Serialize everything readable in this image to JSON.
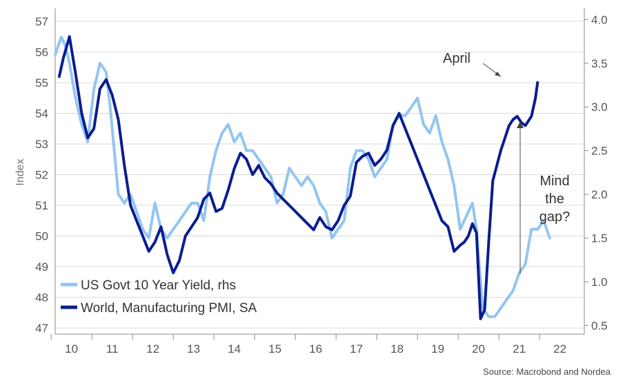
{
  "chart_data": {
    "type": "line",
    "title": "",
    "ylabel_left": "Index",
    "ylabel_right": "",
    "x_ticks": [
      "10",
      "11",
      "12",
      "13",
      "14",
      "15",
      "16",
      "17",
      "18",
      "19",
      "20",
      "21",
      "22"
    ],
    "xlim": [
      2009.6,
      2022.6
    ],
    "ylim_left": [
      46.8,
      57.2
    ],
    "y_ticks_left": [
      47,
      48,
      49,
      50,
      51,
      52,
      53,
      54,
      55,
      56,
      57
    ],
    "ylim_right": [
      0.4,
      4.05
    ],
    "y_ticks_right": [
      "0.5",
      "1.0",
      "1.5",
      "2.0",
      "2.5",
      "3.0",
      "3.5",
      "4.0"
    ],
    "grid": "horizontal",
    "legend_position": "bottom-left",
    "series": [
      {
        "name": "US Govt 10 Year Yield, rhs",
        "axis": "right",
        "color": "#93c5f0",
        "x": [
          2009.6,
          2009.75,
          2009.85,
          2009.95,
          2010.1,
          2010.25,
          2010.4,
          2010.55,
          2010.7,
          2010.85,
          2010.95,
          2011.05,
          2011.15,
          2011.3,
          2011.45,
          2011.6,
          2011.75,
          2011.9,
          2012.05,
          2012.2,
          2012.35,
          2012.5,
          2012.65,
          2012.8,
          2012.95,
          2013.1,
          2013.25,
          2013.4,
          2013.55,
          2013.7,
          2013.85,
          2014.0,
          2014.15,
          2014.3,
          2014.45,
          2014.6,
          2014.75,
          2014.9,
          2015.05,
          2015.2,
          2015.35,
          2015.5,
          2015.65,
          2015.8,
          2015.95,
          2016.1,
          2016.25,
          2016.4,
          2016.55,
          2016.7,
          2016.85,
          2017.0,
          2017.15,
          2017.3,
          2017.45,
          2017.6,
          2017.75,
          2017.9,
          2018.05,
          2018.2,
          2018.35,
          2018.5,
          2018.65,
          2018.8,
          2018.95,
          2019.1,
          2019.25,
          2019.4,
          2019.55,
          2019.65,
          2019.75,
          2019.85,
          2019.95,
          2020.1,
          2020.25,
          2020.4,
          2020.55,
          2020.7,
          2020.85,
          2021.0,
          2021.15,
          2021.3,
          2021.45,
          2021.6,
          2021.75
        ],
        "values": [
          3.6,
          3.8,
          3.7,
          3.5,
          3.1,
          2.8,
          2.6,
          3.2,
          3.5,
          3.4,
          3.0,
          2.5,
          2.0,
          1.9,
          2.0,
          1.8,
          1.6,
          1.5,
          1.9,
          1.6,
          1.5,
          1.6,
          1.7,
          1.8,
          1.9,
          1.9,
          1.7,
          2.2,
          2.5,
          2.7,
          2.8,
          2.6,
          2.7,
          2.5,
          2.5,
          2.4,
          2.3,
          2.2,
          1.9,
          2.0,
          2.3,
          2.2,
          2.1,
          2.2,
          2.1,
          1.9,
          1.8,
          1.5,
          1.6,
          1.7,
          2.3,
          2.5,
          2.5,
          2.4,
          2.2,
          2.3,
          2.4,
          2.8,
          2.9,
          2.9,
          3.0,
          3.1,
          2.8,
          2.7,
          2.9,
          2.6,
          2.4,
          2.1,
          1.6,
          1.7,
          1.8,
          1.9,
          1.6,
          0.7,
          0.6,
          0.6,
          0.7,
          0.8,
          0.9,
          1.1,
          1.2,
          1.6,
          1.6,
          1.7,
          1.5
        ]
      },
      {
        "name": "World, Manufacturing PMI, SA",
        "axis": "left",
        "color": "#0a1d8f",
        "x": [
          2009.7,
          2009.8,
          2009.95,
          2010.1,
          2010.25,
          2010.4,
          2010.55,
          2010.7,
          2010.85,
          2011.0,
          2011.15,
          2011.3,
          2011.45,
          2011.6,
          2011.75,
          2011.9,
          2012.05,
          2012.2,
          2012.35,
          2012.5,
          2012.65,
          2012.8,
          2012.95,
          2013.1,
          2013.25,
          2013.4,
          2013.55,
          2013.7,
          2013.85,
          2014.0,
          2014.15,
          2014.3,
          2014.45,
          2014.6,
          2014.75,
          2014.9,
          2015.05,
          2015.2,
          2015.35,
          2015.5,
          2015.65,
          2015.8,
          2015.95,
          2016.1,
          2016.25,
          2016.4,
          2016.55,
          2016.7,
          2016.85,
          2017.0,
          2017.15,
          2017.3,
          2017.45,
          2017.6,
          2017.75,
          2017.9,
          2018.05,
          2018.2,
          2018.35,
          2018.5,
          2018.65,
          2018.8,
          2018.95,
          2019.1,
          2019.25,
          2019.4,
          2019.55,
          2019.65,
          2019.75,
          2019.85,
          2019.95,
          2020.05,
          2020.15,
          2020.25,
          2020.35,
          2020.45,
          2020.55,
          2020.65,
          2020.75,
          2020.85,
          2020.95,
          2021.05,
          2021.15,
          2021.3,
          2021.4,
          2021.45
        ],
        "values": [
          55.2,
          55.8,
          56.5,
          55.3,
          54.0,
          53.2,
          53.5,
          54.8,
          55.1,
          54.6,
          53.8,
          52.3,
          51.0,
          50.5,
          50.0,
          49.5,
          49.8,
          50.3,
          49.4,
          48.8,
          49.2,
          50.0,
          50.3,
          50.6,
          51.2,
          51.4,
          50.8,
          50.9,
          51.5,
          52.2,
          52.7,
          52.5,
          52.0,
          52.3,
          51.9,
          51.7,
          51.4,
          51.2,
          51.0,
          50.8,
          50.6,
          50.4,
          50.2,
          50.6,
          50.3,
          50.2,
          50.5,
          51.0,
          51.3,
          52.4,
          52.6,
          52.7,
          52.3,
          52.5,
          52.8,
          53.6,
          54.0,
          53.5,
          53.0,
          52.5,
          52.0,
          51.5,
          51.0,
          50.5,
          50.3,
          49.5,
          49.7,
          49.8,
          50.0,
          50.4,
          50.1,
          47.3,
          47.6,
          49.8,
          51.8,
          52.3,
          52.8,
          53.2,
          53.6,
          53.8,
          53.9,
          53.7,
          53.6,
          53.9,
          54.5,
          55.0
        ]
      }
    ],
    "annotations": {
      "april": "April",
      "mind_gap": [
        "Mind",
        "the",
        "gap?"
      ]
    },
    "source": "Source: Macrobond and Nordea"
  }
}
